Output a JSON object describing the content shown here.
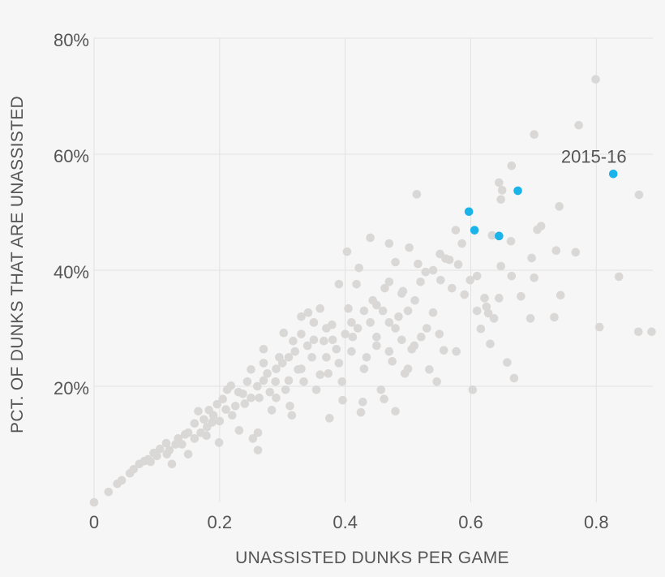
{
  "chart_data": {
    "type": "scatter",
    "xlabel": "UNASSISTED DUNKS PER GAME",
    "ylabel": "PCT. OF DUNKS THAT ARE UNASSISTED",
    "xlim": [
      0,
      0.89
    ],
    "ylim": [
      0,
      80
    ],
    "x_ticks": [
      {
        "v": 0,
        "label": "0"
      },
      {
        "v": 0.2,
        "label": "0.2"
      },
      {
        "v": 0.4,
        "label": "0.4"
      },
      {
        "v": 0.6,
        "label": "0.6"
      },
      {
        "v": 0.8,
        "label": "0.8"
      }
    ],
    "y_ticks": [
      {
        "v": 20,
        "label": "20%"
      },
      {
        "v": 40,
        "label": "40%"
      },
      {
        "v": 60,
        "label": "60%"
      },
      {
        "v": 80,
        "label": "80%"
      }
    ],
    "grid": true,
    "colors": {
      "other": "#d9d8d6",
      "highlight": "#1ab3ea",
      "background": "#f6f6f6"
    },
    "annotation": {
      "label": "2015-16",
      "x": 0.827,
      "y": 56.6
    },
    "highlight_points": [
      [
        0.597,
        50.1
      ],
      [
        0.606,
        46.9
      ],
      [
        0.645,
        45.9
      ],
      [
        0.675,
        53.7
      ],
      [
        0.827,
        56.6
      ]
    ],
    "other_points": [
      [
        0.799,
        72.9
      ],
      [
        0.772,
        65.0
      ],
      [
        0.701,
        63.4
      ],
      [
        0.665,
        58.0
      ],
      [
        0.645,
        55.1
      ],
      [
        0.65,
        53.8
      ],
      [
        0.648,
        52.2
      ],
      [
        0.514,
        53.1
      ],
      [
        0.868,
        53.0
      ],
      [
        0.741,
        51.0
      ],
      [
        0.712,
        47.6
      ],
      [
        0.706,
        47.0
      ],
      [
        0.664,
        45.0
      ],
      [
        0.634,
        46.0
      ],
      [
        0.576,
        46.9
      ],
      [
        0.551,
        42.8
      ],
      [
        0.736,
        43.4
      ],
      [
        0.767,
        43.1
      ],
      [
        0.697,
        42.1
      ],
      [
        0.648,
        40.7
      ],
      [
        0.836,
        38.9
      ],
      [
        0.701,
        38.7
      ],
      [
        0.665,
        39.0
      ],
      [
        0.61,
        39.0
      ],
      [
        0.599,
        38.3
      ],
      [
        0.68,
        35.5
      ],
      [
        0.743,
        35.7
      ],
      [
        0.645,
        35.2
      ],
      [
        0.61,
        33.0
      ],
      [
        0.637,
        31.7
      ],
      [
        0.695,
        31.7
      ],
      [
        0.805,
        30.2
      ],
      [
        0.616,
        29.9
      ],
      [
        0.628,
        32.6
      ],
      [
        0.867,
        29.4
      ],
      [
        0.888,
        29.4
      ],
      [
        0.631,
        27.3
      ],
      [
        0.658,
        24.1
      ],
      [
        0.669,
        21.4
      ],
      [
        0.603,
        19.4
      ],
      [
        0.733,
        31.9
      ],
      [
        0.622,
        35.2
      ],
      [
        0.625,
        33.7
      ],
      [
        0,
        0
      ],
      [
        0.023,
        1.8
      ],
      [
        0.037,
        3.2
      ],
      [
        0.044,
        3.8
      ],
      [
        0.057,
        5.0
      ],
      [
        0.063,
        5.7
      ],
      [
        0.072,
        6.6
      ],
      [
        0.08,
        7.1
      ],
      [
        0.086,
        7.4
      ],
      [
        0.095,
        8.5
      ],
      [
        0.105,
        9.2
      ],
      [
        0.115,
        10.2
      ],
      [
        0.124,
        6.6
      ],
      [
        0.134,
        11.0
      ],
      [
        0.145,
        11.7
      ],
      [
        0.15,
        8.3
      ],
      [
        0.16,
        13.6
      ],
      [
        0.166,
        15.7
      ],
      [
        0.175,
        14.3
      ],
      [
        0.183,
        15.9
      ],
      [
        0.188,
        13.8
      ],
      [
        0.199,
        10.3
      ],
      [
        0.196,
        16.9
      ],
      [
        0.205,
        17.8
      ],
      [
        0.212,
        19.4
      ],
      [
        0.218,
        20.1
      ],
      [
        0.225,
        16.6
      ],
      [
        0.231,
        12.4
      ],
      [
        0.237,
        18.7
      ],
      [
        0.244,
        20.8
      ],
      [
        0.25,
        22.9
      ],
      [
        0.253,
        11.0
      ],
      [
        0.261,
        9.0
      ],
      [
        0.263,
        18.0
      ],
      [
        0.27,
        26.4
      ],
      [
        0.276,
        22.2
      ],
      [
        0.283,
        15.9
      ],
      [
        0.289,
        20.8
      ],
      [
        0.295,
        25.0
      ],
      [
        0.302,
        29.2
      ],
      [
        0.305,
        19.4
      ],
      [
        0.312,
        16.6
      ],
      [
        0.317,
        27.8
      ],
      [
        0.325,
        22.9
      ],
      [
        0.33,
        32.0
      ],
      [
        0.334,
        20.8
      ],
      [
        0.341,
        32.7
      ],
      [
        0.347,
        25.0
      ],
      [
        0.354,
        19.4
      ],
      [
        0.36,
        33.4
      ],
      [
        0.366,
        27.8
      ],
      [
        0.373,
        22.2
      ],
      [
        0.379,
        30.6
      ],
      [
        0.386,
        26.4
      ],
      [
        0.39,
        37.6
      ],
      [
        0.395,
        20.8
      ],
      [
        0.403,
        43.2
      ],
      [
        0.405,
        33.4
      ],
      [
        0.412,
        28.5
      ],
      [
        0.418,
        37.6
      ],
      [
        0.422,
        40.4
      ],
      [
        0.428,
        17.3
      ],
      [
        0.434,
        25.0
      ],
      [
        0.44,
        45.6
      ],
      [
        0.444,
        34.8
      ],
      [
        0.45,
        28.5
      ],
      [
        0.457,
        19.4
      ],
      [
        0.463,
        36.9
      ],
      [
        0.47,
        44.6
      ],
      [
        0.475,
        24.3
      ],
      [
        0.48,
        41.4
      ],
      [
        0.485,
        32.0
      ],
      [
        0.492,
        36.4
      ],
      [
        0.495,
        22.2
      ],
      [
        0.502,
        43.9
      ],
      [
        0.506,
        26.4
      ],
      [
        0.511,
        34.8
      ],
      [
        0.516,
        41.1
      ],
      [
        0.521,
        28.5
      ],
      [
        0.528,
        39.7
      ],
      [
        0.534,
        22.9
      ],
      [
        0.54,
        32.7
      ],
      [
        0.546,
        20.8
      ],
      [
        0.552,
        38.3
      ],
      [
        0.557,
        26.2
      ],
      [
        0.566,
        41.8
      ],
      [
        0.57,
        36.9
      ],
      [
        0.577,
        26.0
      ],
      [
        0.586,
        44.6
      ],
      [
        0.59,
        35.8
      ],
      [
        0.48,
        15.7
      ],
      [
        0.462,
        17.8
      ],
      [
        0.425,
        15.5
      ],
      [
        0.375,
        14.5
      ],
      [
        0.396,
        17.6
      ],
      [
        0.315,
        15.0
      ],
      [
        0.261,
        12.0
      ],
      [
        0.179,
        11.5
      ],
      [
        0.16,
        11.0
      ],
      [
        0.116,
        8.3
      ],
      [
        0.3,
        24
      ],
      [
        0.32,
        26
      ],
      [
        0.35,
        28
      ],
      [
        0.37,
        25
      ],
      [
        0.4,
        29
      ],
      [
        0.42,
        30
      ],
      [
        0.44,
        31
      ],
      [
        0.46,
        33
      ],
      [
        0.48,
        30
      ],
      [
        0.5,
        33
      ],
      [
        0.26,
        20
      ],
      [
        0.28,
        19
      ],
      [
        0.27,
        24
      ],
      [
        0.24,
        17
      ],
      [
        0.22,
        15
      ],
      [
        0.2,
        14
      ],
      [
        0.19,
        15
      ],
      [
        0.17,
        12
      ],
      [
        0.14,
        10
      ],
      [
        0.12,
        9
      ],
      [
        0.1,
        8
      ],
      [
        0.09,
        7
      ],
      [
        0.38,
        28
      ],
      [
        0.41,
        26
      ],
      [
        0.43,
        23
      ],
      [
        0.36,
        22
      ],
      [
        0.33,
        23
      ],
      [
        0.31,
        21
      ],
      [
        0.29,
        18
      ],
      [
        0.34,
        27
      ],
      [
        0.45,
        34
      ],
      [
        0.47,
        38
      ],
      [
        0.49,
        36
      ],
      [
        0.52,
        38
      ],
      [
        0.54,
        40
      ],
      [
        0.56,
        42
      ],
      [
        0.58,
        41
      ],
      [
        0.53,
        30
      ],
      [
        0.55,
        29
      ],
      [
        0.51,
        27
      ],
      [
        0.5,
        23
      ],
      [
        0.47,
        26
      ],
      [
        0.23,
        19
      ],
      [
        0.25,
        18
      ],
      [
        0.27,
        21
      ],
      [
        0.29,
        23
      ],
      [
        0.31,
        25
      ],
      [
        0.33,
        29
      ],
      [
        0.35,
        31
      ],
      [
        0.37,
        30
      ],
      [
        0.39,
        24
      ],
      [
        0.41,
        31
      ],
      [
        0.43,
        33
      ],
      [
        0.45,
        27
      ],
      [
        0.47,
        31
      ],
      [
        0.49,
        28
      ],
      [
        0.21,
        16
      ],
      [
        0.18,
        13
      ],
      [
        0.15,
        12
      ],
      [
        0.13,
        10
      ]
    ]
  }
}
